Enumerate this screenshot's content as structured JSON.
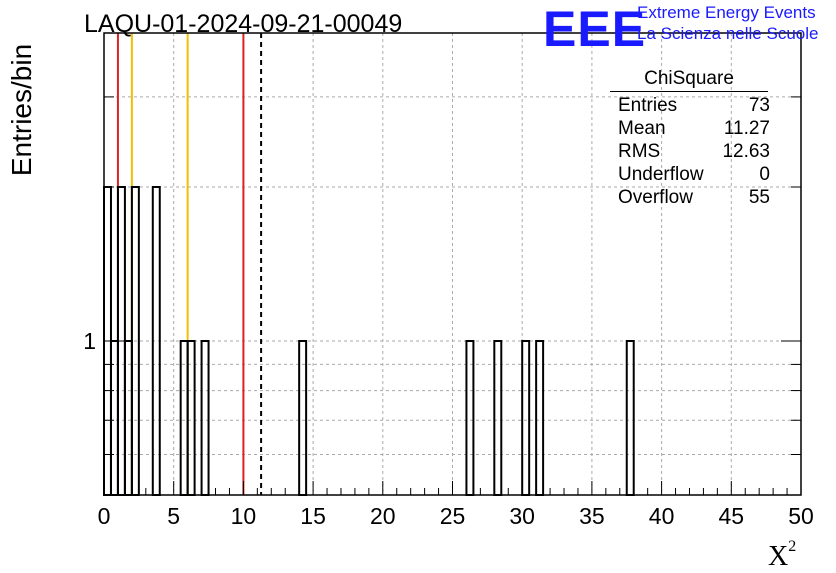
{
  "title": "LAQU-01-2024-09-21-00049",
  "logo": {
    "mark": "EEE",
    "line1": "Extreme Energy Events",
    "line2": "La Scienza nelle Scuole",
    "color": "#1a1aff"
  },
  "stats": {
    "name": "ChiSquare",
    "rows": [
      {
        "label": "Entries",
        "value": "73"
      },
      {
        "label": "Mean",
        "value": "11.27"
      },
      {
        "label": "RMS",
        "value": "12.63"
      },
      {
        "label": "Underflow",
        "value": "0"
      },
      {
        "label": "Overflow",
        "value": "55"
      }
    ]
  },
  "chart_data": {
    "type": "bar",
    "xlabel": "X²",
    "ylabel": "Entries/bin",
    "xlim": [
      0,
      50
    ],
    "x_ticks": [
      0,
      5,
      10,
      15,
      20,
      25,
      30,
      35,
      40,
      45,
      50
    ],
    "y_scale": "log",
    "ylim": [
      0.5,
      4
    ],
    "y_ticks": [
      1
    ],
    "bin_width": 0.5,
    "bins": [
      {
        "x": 0.0,
        "count": 2
      },
      {
        "x": 0.5,
        "count": 1
      },
      {
        "x": 1.0,
        "count": 2
      },
      {
        "x": 1.5,
        "count": 1
      },
      {
        "x": 2.0,
        "count": 2
      },
      {
        "x": 3.5,
        "count": 2
      },
      {
        "x": 5.5,
        "count": 1
      },
      {
        "x": 6.0,
        "count": 1
      },
      {
        "x": 7.0,
        "count": 1
      },
      {
        "x": 14.0,
        "count": 1
      },
      {
        "x": 26.0,
        "count": 1
      },
      {
        "x": 28.0,
        "count": 1
      },
      {
        "x": 30.0,
        "count": 1
      },
      {
        "x": 31.0,
        "count": 1
      },
      {
        "x": 37.5,
        "count": 1
      }
    ],
    "vertical_lines": [
      {
        "x": 1.0,
        "color": "#dd2222",
        "style": "solid"
      },
      {
        "x": 2.0,
        "color": "#f0c000",
        "style": "solid"
      },
      {
        "x": 6.0,
        "color": "#f0c000",
        "style": "solid"
      },
      {
        "x": 10.0,
        "color": "#dd2222",
        "style": "solid"
      },
      {
        "x": 11.27,
        "color": "#000000",
        "style": "dashed"
      }
    ],
    "grid": true
  }
}
